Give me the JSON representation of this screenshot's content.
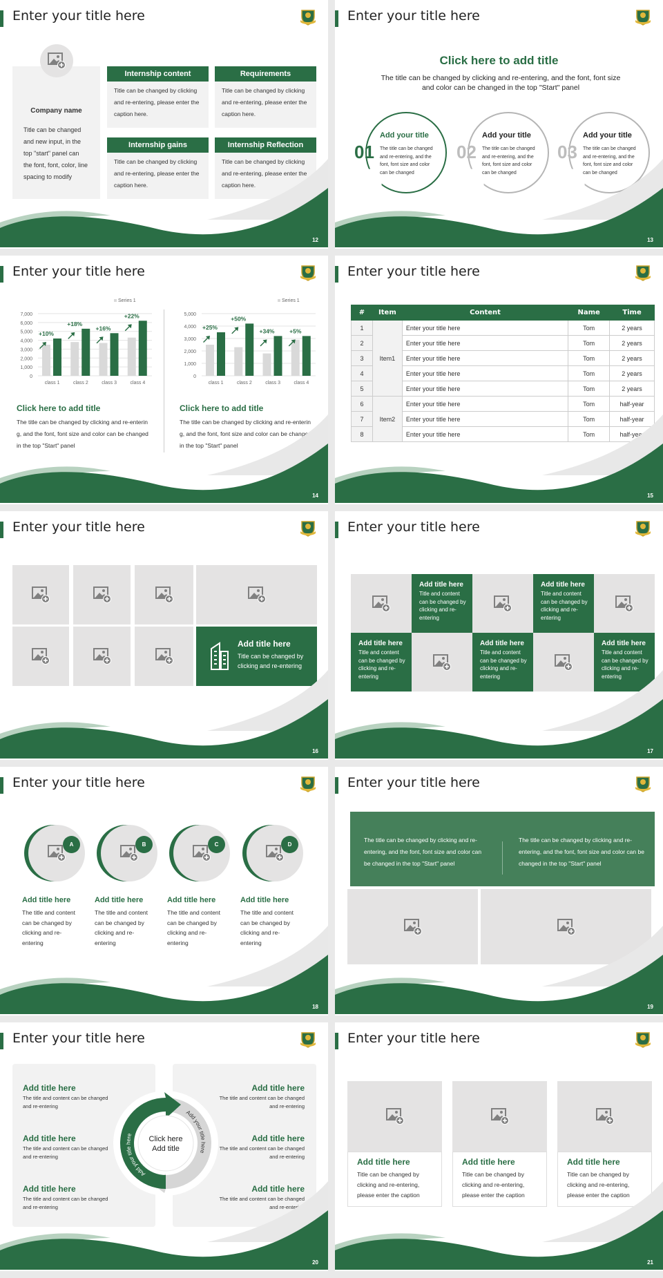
{
  "common": {
    "slide_title": "Enter your title here",
    "accent": "#2a6e45",
    "logo": "school-crest"
  },
  "s12": {
    "page": "12",
    "company": "Company name",
    "company_text": "Title can be changed and new input, in the top \"start\" panel can the font, font, color, line spacing to modify",
    "boxes": [
      {
        "title": "Internship content",
        "text": "Title can be changed by clicking and re-entering, please enter the caption here."
      },
      {
        "title": "Requirements",
        "text": "Title can be changed by clicking and re-entering, please enter the caption here."
      },
      {
        "title": "Internship gains",
        "text": "Title can be changed by clicking and re-entering, please enter the caption here."
      },
      {
        "title": "Internship Reflection",
        "text": "Title can be changed by clicking and re-entering, please enter the caption here."
      }
    ]
  },
  "s13": {
    "page": "13",
    "title": "Click here to add title",
    "subtitle": "The title can be changed by clicking and re-entering, and the font, font size and color can be changed in the top \"Start\" panel",
    "items": [
      {
        "num": "01",
        "title": "Add your title",
        "text": "The title can be changed and re-entering, and the font, font size and color can be changed"
      },
      {
        "num": "02",
        "title": "Add your title",
        "text": "The title can be changed and re-entering, and the font, font size and color can be changed"
      },
      {
        "num": "03",
        "title": "Add your title",
        "text": "The title can be changed and re-entering, and the font, font size and color can be changed"
      }
    ]
  },
  "s14": {
    "page": "14",
    "panels": [
      {
        "title": "Click here to add title",
        "text": "The title can be changed by clicking and re-entering, and the font, font size and color can be changed in the top \"Start\" panel"
      },
      {
        "title": "Click here to add title",
        "text": "The title can be changed by clicking and re-entering, and the font, font size and color can be changed in the top \"Start\" panel"
      }
    ]
  },
  "chart_data": [
    {
      "type": "bar",
      "categories": [
        "class 1",
        "class 2",
        "class 3",
        "class 4"
      ],
      "legend": "Series 1",
      "legend_position": "top-right",
      "ylim": [
        0,
        7000
      ],
      "yticks": [
        "0",
        "1,000",
        "2,000",
        "3,000",
        "4,000",
        "5,000",
        "6,000",
        "7,000"
      ],
      "grid": true,
      "series": [
        {
          "color": "#d9d9d9",
          "values": [
            3500,
            3800,
            3700,
            4300
          ]
        },
        {
          "color": "#2a6e45",
          "values": [
            4200,
            5300,
            4800,
            6200
          ]
        }
      ],
      "annotations": [
        "+10%",
        "+18%",
        "+16%",
        "+22%"
      ]
    },
    {
      "type": "bar",
      "categories": [
        "class 1",
        "class 2",
        "class 3",
        "class 4"
      ],
      "legend": "Series 1",
      "legend_position": "top-right",
      "ylim": [
        0,
        5000
      ],
      "yticks": [
        "0",
        "1,000",
        "2,000",
        "3,000",
        "4,000",
        "5,000"
      ],
      "grid": true,
      "series": [
        {
          "color": "#d9d9d9",
          "values": [
            2500,
            2300,
            1800,
            2900
          ]
        },
        {
          "color": "#2a6e45",
          "values": [
            3500,
            4200,
            3200,
            3200
          ]
        }
      ],
      "annotations": [
        "+25%",
        "+50%",
        "+34%",
        "+5%"
      ]
    }
  ],
  "s15": {
    "page": "15",
    "headers": [
      "#",
      "Item",
      "Content",
      "Name",
      "Time"
    ],
    "groups": [
      "Item1",
      "Item2"
    ],
    "rows": [
      [
        "1",
        "Enter your title here",
        "Tom",
        "2 years"
      ],
      [
        "2",
        "Enter your title here",
        "Tom",
        "2 years"
      ],
      [
        "3",
        "Enter your title here",
        "Tom",
        "2 years"
      ],
      [
        "4",
        "Enter your title here",
        "Tom",
        "2 years"
      ],
      [
        "5",
        "Enter your title here",
        "Tom",
        "2 years"
      ],
      [
        "6",
        "Enter your title here",
        "Tom",
        "half-year"
      ],
      [
        "7",
        "Enter your title here",
        "Tom",
        "half-year"
      ],
      [
        "8",
        "Enter your title here",
        "Tom",
        "half-year"
      ]
    ]
  },
  "s16": {
    "page": "16",
    "title": "Add title here",
    "text": "Title can be changed by clicking and re-entering"
  },
  "s17": {
    "page": "17",
    "cells": [
      {
        "title": "Add title here",
        "text": "Title and content can be changed by clicking and re-entering"
      },
      {
        "title": "Add title here",
        "text": "Title and content can be changed by clicking and re-entering"
      },
      {
        "title": "Add title here",
        "text": "Title and content can be changed by clicking and re-entering"
      },
      {
        "title": "Add title here",
        "text": "Title and content can be changed by clicking and re-entering"
      },
      {
        "title": "Add title here",
        "text": "Title and content can be changed by clicking and re-entering"
      }
    ]
  },
  "s18": {
    "page": "18",
    "items": [
      {
        "badge": "A",
        "title": "Add title here",
        "text": "The title and content can be changed by clicking and re-entering"
      },
      {
        "badge": "B",
        "title": "Add title here",
        "text": "The title and content can be changed by clicking and re-entering"
      },
      {
        "badge": "C",
        "title": "Add title here",
        "text": "The title and content can be changed by clicking and re-entering"
      },
      {
        "badge": "D",
        "title": "Add title here",
        "text": "The title and content can be changed by clicking and re-entering"
      }
    ]
  },
  "s19": {
    "page": "19",
    "texts": [
      "The title can be changed by clicking and re-entering, and the font, font size and color can be changed in the top \"Start\" panel",
      "The title can be changed by clicking and re-entering, and the font, font size and color can be changed in the top \"Start\" panel"
    ]
  },
  "s20": {
    "page": "20",
    "center": "Click here Add title",
    "arc_left": "Add your title here",
    "arc_right": "Add your title here",
    "items": [
      {
        "title": "Add title here",
        "text": "The title and content can be changed and re-entering"
      },
      {
        "title": "Add title here",
        "text": "The title and content can be changed and re-entering"
      },
      {
        "title": "Add title here",
        "text": "The title and content can be changed and re-entering"
      },
      {
        "title": "Add title here",
        "text": "The title and content can be changed and re-entering"
      },
      {
        "title": "Add title here",
        "text": "The title and content can be changed and re-entering"
      },
      {
        "title": "Add title here",
        "text": "The title and content can be changed and re-entering"
      }
    ]
  },
  "s21": {
    "page": "21",
    "cards": [
      {
        "title": "Add title here",
        "text": "Title can be changed by clicking and re-entering, please enter the caption"
      },
      {
        "title": "Add title here",
        "text": "Title can be changed by clicking and re-entering, please enter the caption"
      },
      {
        "title": "Add title here",
        "text": "Title can be changed by clicking and re-entering, please enter the caption"
      }
    ]
  }
}
